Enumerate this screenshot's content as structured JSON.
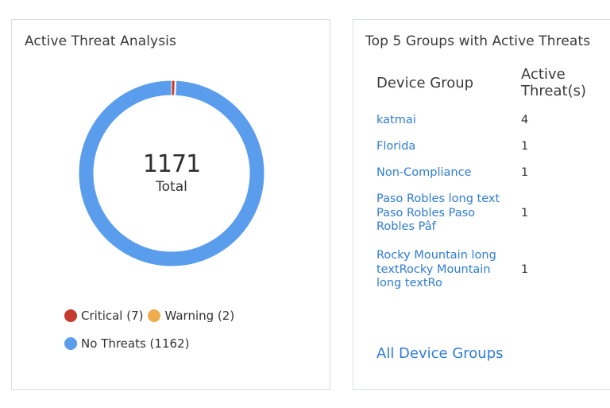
{
  "left_card": {
    "title": "Active Threat Analysis",
    "total_value": "1171",
    "total_label": "Total",
    "legend": [
      {
        "label": "Critical (7)",
        "color": "#c63a30"
      },
      {
        "label": "Warning (2)",
        "color": "#f0ad4e"
      },
      {
        "label": "No Threats (1162)",
        "color": "#5a9ded"
      }
    ]
  },
  "chart_data": {
    "type": "pie",
    "style": "donut",
    "categories": [
      "Critical",
      "Warning",
      "No Threats"
    ],
    "values": [
      7,
      2,
      1162
    ],
    "colors": [
      "#c63a30",
      "#f0ad4e",
      "#5a9ded"
    ],
    "center_text": "1171",
    "center_subtext": "Total"
  },
  "right_card": {
    "title": "Top 5 Groups with Active Threats",
    "headers": {
      "group": "Device Group",
      "threats": "Active Threat(s)"
    },
    "rows": [
      {
        "name": "katmai",
        "count": "4"
      },
      {
        "name": "Florida",
        "count": "1"
      },
      {
        "name": "Non-Compliance",
        "count": "1"
      },
      {
        "name": "Paso Robles long text Paso Robles Paso Robles Pâf",
        "count": "1"
      },
      {
        "name": "Rocky Mountain long textRocky Mountain long textRo",
        "count": "1"
      }
    ],
    "footer_link": "All Device Groups"
  }
}
